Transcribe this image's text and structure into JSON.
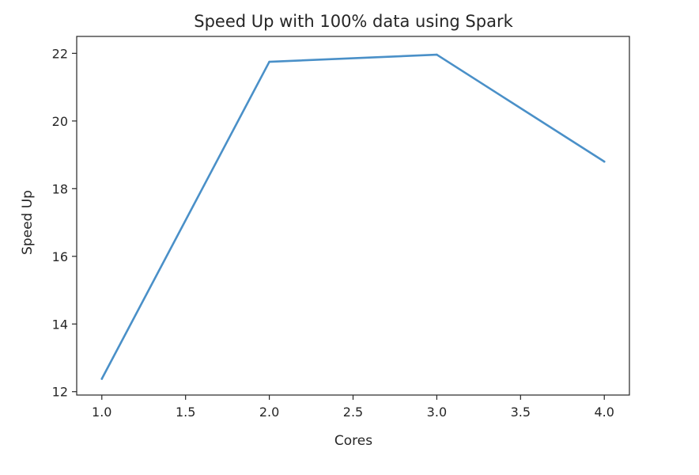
{
  "chart_data": {
    "type": "line",
    "title": "Speed Up with 100% data using Spark",
    "xlabel": "Cores",
    "ylabel": "Speed Up",
    "x": [
      1.0,
      2.0,
      3.0,
      4.0
    ],
    "series": [
      {
        "values": [
          12.38,
          21.75,
          21.96,
          18.8
        ],
        "color": "#4a90c8"
      }
    ],
    "xlim": [
      0.85,
      4.15
    ],
    "ylim": [
      11.9,
      22.5
    ],
    "x_ticks": [
      1.0,
      1.5,
      2.0,
      2.5,
      3.0,
      3.5,
      4.0
    ],
    "x_tick_labels": [
      "1.0",
      "1.5",
      "2.0",
      "2.5",
      "3.0",
      "3.5",
      "4.0"
    ],
    "y_ticks": [
      12,
      14,
      16,
      18,
      20,
      22
    ],
    "y_tick_labels": [
      "12",
      "14",
      "16",
      "18",
      "20",
      "22"
    ],
    "grid": false,
    "legend": false
  }
}
